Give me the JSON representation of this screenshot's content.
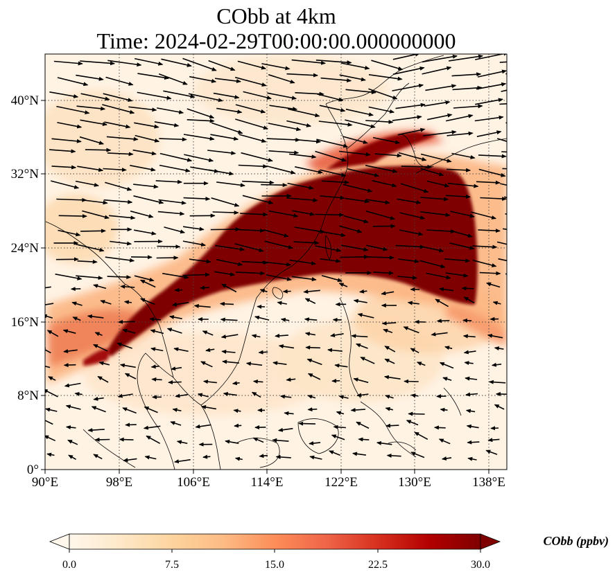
{
  "title": {
    "line1": "CObb at 4km",
    "line2": "Time: 2024-02-29T00:00:00.000000000"
  },
  "map": {
    "x_ticks": [
      "90°E",
      "98°E",
      "106°E",
      "114°E",
      "122°E",
      "130°E",
      "138°E"
    ],
    "y_ticks": [
      "40°N",
      "32°N",
      "24°N",
      "16°N",
      "8°N",
      "0°"
    ],
    "lon_range": [
      90,
      140
    ],
    "lat_range": [
      0,
      45
    ],
    "gridlines": "dotted",
    "wind_vectors": true,
    "coastlines": true
  },
  "colorbar": {
    "label": "CObb (ppbv)",
    "ticks": [
      "0.0",
      "7.5",
      "15.0",
      "22.5",
      "30.0"
    ],
    "range": [
      0,
      30
    ],
    "colormap": "OrRd",
    "colors": [
      "#fff7ec",
      "#fee8c8",
      "#fdd49e",
      "#fdbb84",
      "#fc8d59",
      "#ef6548",
      "#d7301f",
      "#b30000",
      "#7f0000"
    ],
    "extend": "both"
  }
}
